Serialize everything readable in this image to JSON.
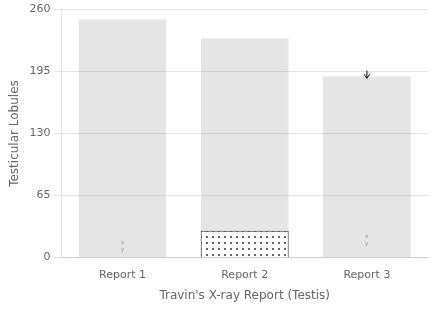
{
  "chart_data": {
    "type": "bar",
    "categories": [
      "Report 1",
      "Report 2",
      "Report 3"
    ],
    "values": [
      250,
      230,
      190
    ],
    "hatched_base": [
      null,
      28,
      null
    ],
    "ylim": [
      0,
      260
    ],
    "yticks": [
      0,
      65,
      130,
      195,
      260
    ],
    "ylabel": "Testicular Lobules",
    "xlabel": "Travin's X-ray Report (Testis)",
    "grid": true,
    "annotations": [
      {
        "text": "x\ny",
        "x": "Report 1",
        "y": 5
      },
      {
        "text": "x\ny",
        "x": "Report 3",
        "y": 12
      },
      {
        "x": "Report 3",
        "y": 196,
        "arrow_to": 188
      }
    ]
  }
}
